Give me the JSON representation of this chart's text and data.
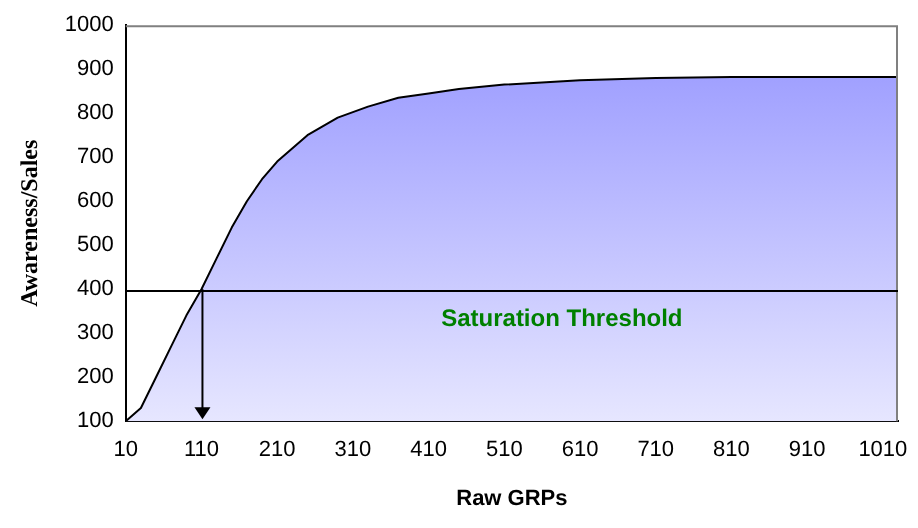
{
  "chart_data": {
    "type": "area",
    "xlabel": "Raw GRPs",
    "ylabel": "Awareness/Sales",
    "x": [
      10,
      30,
      50,
      70,
      90,
      110,
      130,
      150,
      170,
      190,
      210,
      250,
      290,
      330,
      370,
      410,
      450,
      510,
      610,
      710,
      810,
      1030
    ],
    "series": [
      {
        "color": "#9999ff",
        "values": [
          100,
          130,
          200,
          270,
          340,
          400,
          470,
          540,
          600,
          650,
          690,
          750,
          790,
          815,
          835,
          845,
          855,
          865,
          875,
          880,
          882,
          882
        ]
      }
    ],
    "xlim": [
      10,
      1030
    ],
    "xticks": [
      10,
      110,
      210,
      310,
      410,
      510,
      610,
      710,
      810,
      910,
      1010
    ],
    "ylim": [
      100,
      1000
    ],
    "yticks": [
      100,
      200,
      300,
      400,
      500,
      600,
      700,
      800,
      900,
      1000
    ],
    "ref_lines": [
      {
        "axis": "y",
        "value": 400,
        "label": "Saturation Threshold",
        "color": "#000000"
      }
    ],
    "grid": false,
    "legend": false
  }
}
